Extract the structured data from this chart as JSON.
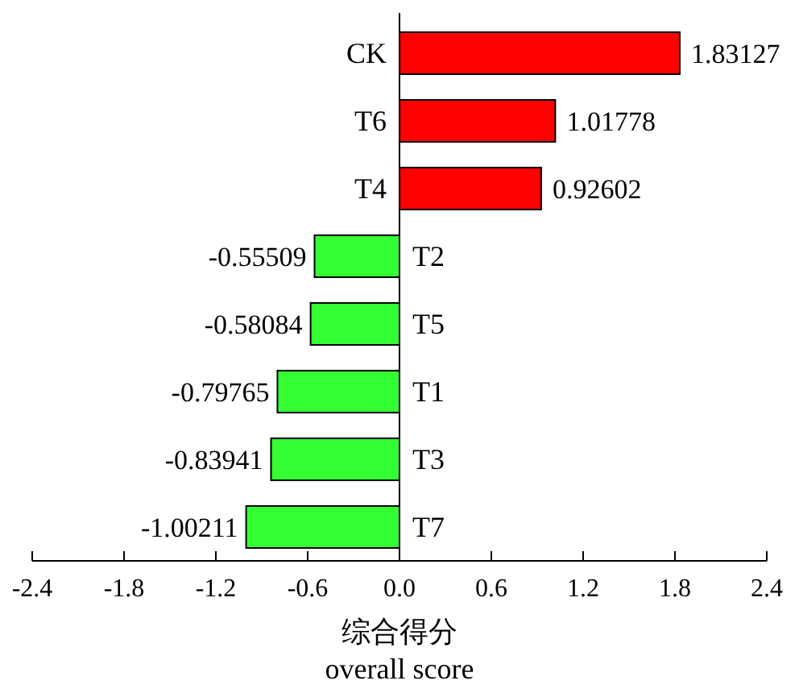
{
  "chart_data": {
    "type": "bar",
    "orientation": "horizontal",
    "xlabel": "综合得分\noverall score",
    "categories": [
      "CK",
      "T6",
      "T4",
      "T2",
      "T5",
      "T1",
      "T3",
      "T7"
    ],
    "values": [
      1.83127,
      1.01778,
      0.92602,
      -0.55509,
      -0.58084,
      -0.79765,
      -0.83941,
      -1.00211
    ],
    "colors": [
      "#ff0000",
      "#ff0000",
      "#ff0000",
      "#33ff33",
      "#33ff33",
      "#33ff33",
      "#33ff33",
      "#33ff33"
    ],
    "xlim": [
      -2.4,
      2.4
    ],
    "xticks": [
      -2.4,
      -1.8,
      -1.2,
      -0.6,
      {
        "value": 0,
        "label": "0.0"
      },
      0.6,
      1.2,
      1.8,
      2.4
    ],
    "data_labels": true
  }
}
